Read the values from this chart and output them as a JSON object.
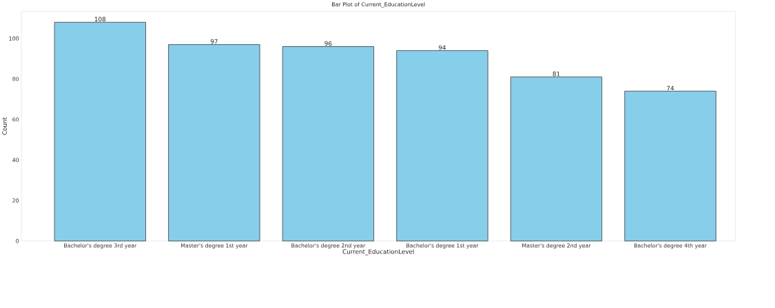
{
  "chart_data": {
    "type": "bar",
    "title": "Bar Plot of Current_EducationLevel",
    "xlabel": "Current_EducationLevel",
    "ylabel": "Count",
    "categories": [
      "Bachelor's degree 3rd year",
      "Master's degree 1st year",
      "Bachelor's degree 2nd year",
      "Bachelor's degree 1st year",
      "Master's degree 2nd year",
      "Bachelor's degree 4th year"
    ],
    "values": [
      108,
      97,
      96,
      94,
      81,
      74
    ],
    "color": "#87ceeb",
    "ylim": [
      0,
      113.4
    ],
    "yticks": [
      0,
      20,
      40,
      60,
      80,
      100
    ],
    "grid": false,
    "data_labels": true
  }
}
